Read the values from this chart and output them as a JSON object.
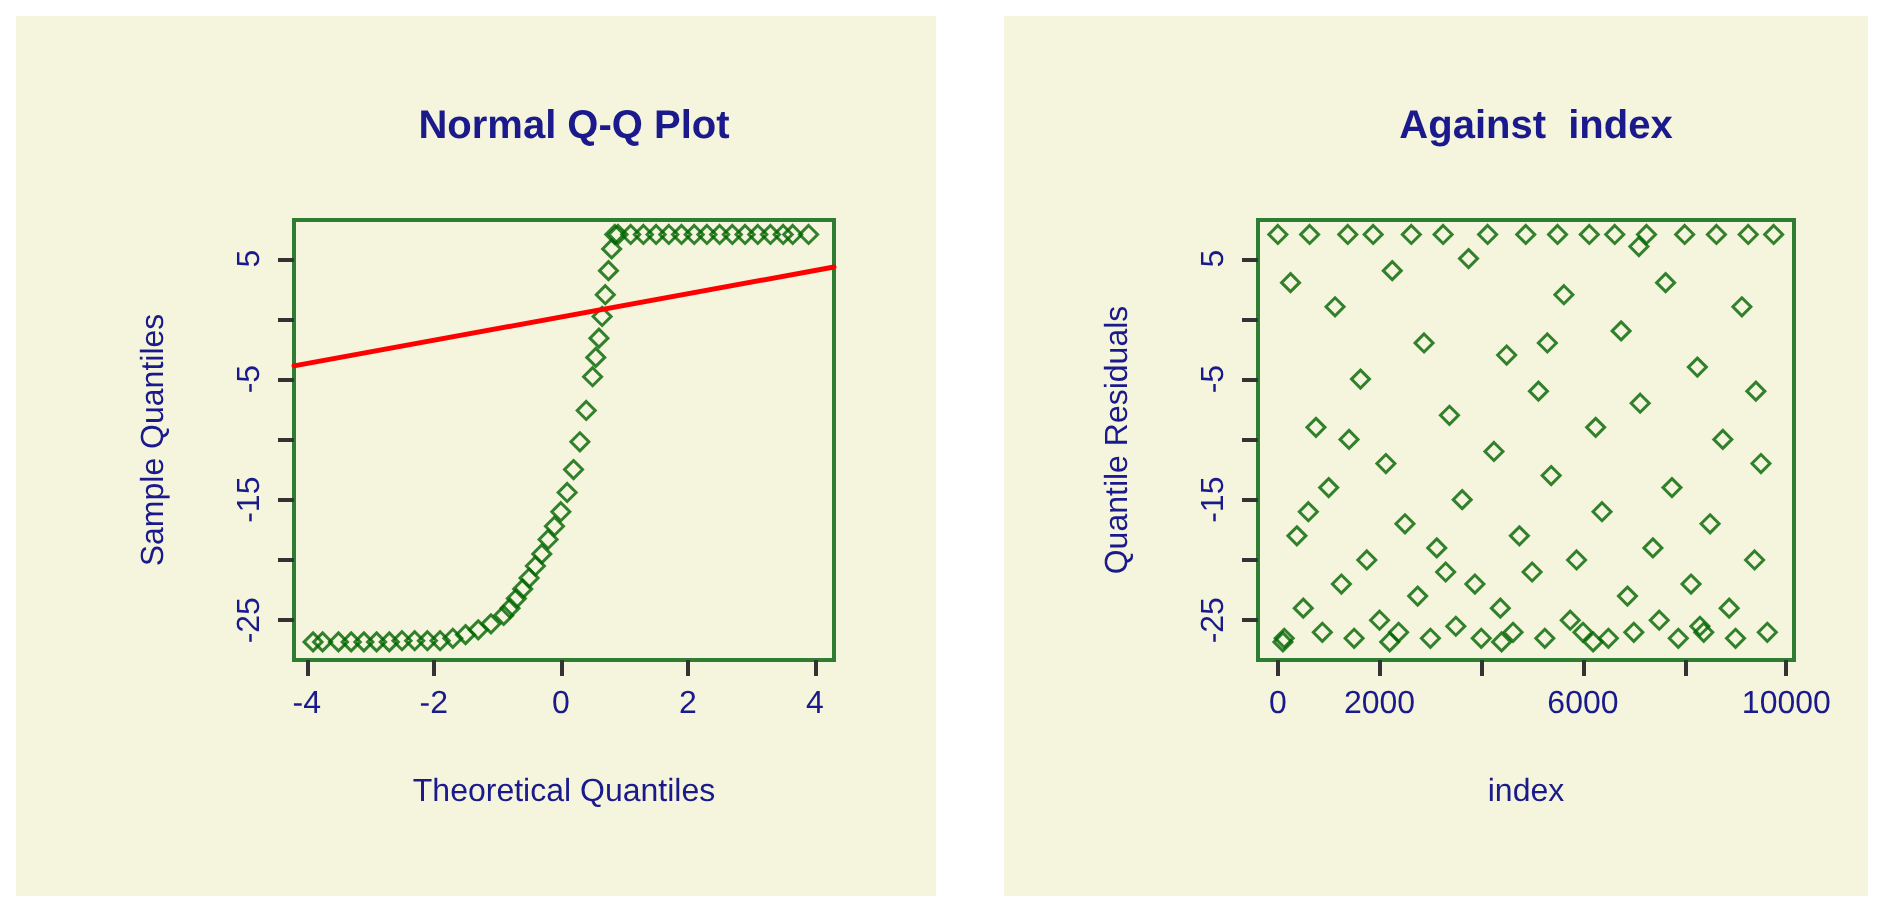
{
  "chart_data": [
    {
      "type": "scatter",
      "title": "Normal Q-Q Plot",
      "xlabel": "Theoretical Quantiles",
      "ylabel": "Sample Quantiles",
      "xlim": [
        -4.2,
        4.3
      ],
      "ylim": [
        -28.3,
        8.2
      ],
      "xticks": [
        -4,
        -2,
        0,
        2,
        4
      ],
      "yticks": [
        {
          "value": -25,
          "label": "-25"
        },
        {
          "value": -20,
          "label": null
        },
        {
          "value": -15,
          "label": "-15"
        },
        {
          "value": -10,
          "label": null
        },
        {
          "value": -5,
          "label": "-5"
        },
        {
          "value": 0,
          "label": null
        },
        {
          "value": 5,
          "label": "5"
        }
      ],
      "grid": false,
      "marker": "diamond",
      "series": [
        {
          "color": "#006400",
          "x": [
            -3.9,
            -3.75,
            -3.5,
            -3.3,
            -3.1,
            -2.9,
            -2.7,
            -2.5,
            -2.3,
            -2.1,
            -1.9,
            -1.7,
            -1.5,
            -1.3,
            -1.1,
            -0.9,
            -0.8,
            -0.7,
            -0.6,
            -0.5,
            -0.4,
            -0.3,
            -0.2,
            -0.1,
            0,
            0.1,
            0.2,
            0.3,
            0.4,
            0.5,
            0.55,
            0.6,
            0.65,
            0.7,
            0.75,
            0.8,
            0.85,
            0.9,
            1.1,
            1.3,
            1.5,
            1.7,
            1.9,
            2.1,
            2.3,
            2.5,
            2.7,
            2.9,
            3.1,
            3.3,
            3.5,
            3.65,
            3.9
          ],
          "values": [
            -26.8,
            -26.8,
            -26.8,
            -26.8,
            -26.8,
            -26.8,
            -26.8,
            -26.7,
            -26.7,
            -26.7,
            -26.7,
            -26.5,
            -26.2,
            -25.8,
            -25.3,
            -24.6,
            -24.0,
            -23.2,
            -22.4,
            -21.5,
            -20.5,
            -19.5,
            -18.3,
            -17.2,
            -16.0,
            -14.4,
            -12.5,
            -10.2,
            -7.6,
            -4.8,
            -3.2,
            -1.6,
            0.2,
            2.0,
            4.0,
            5.8,
            7.0,
            7.0,
            7.0,
            7.0,
            7.0,
            7.0,
            7.0,
            7.0,
            7.0,
            7.0,
            7.0,
            7.0,
            7.0,
            7.0,
            7.0,
            7.0,
            7.0
          ]
        },
        {
          "type": "line",
          "color": "#ff0000",
          "marker": "none",
          "line_style": "solid",
          "x": [
            -4.2,
            4.3
          ],
          "values": [
            -3.9,
            4.3
          ]
        }
      ]
    },
    {
      "type": "scatter",
      "title": "Against  index",
      "xlabel": "index",
      "ylabel": "Quantile Residuals",
      "xlim": [
        -390,
        10150
      ],
      "ylim": [
        -28.3,
        8.2
      ],
      "xticks": [
        0,
        2000,
        {
          "value": 4000,
          "label": null
        },
        6000,
        {
          "value": 8000,
          "label": null
        },
        10000
      ],
      "yticks": [
        {
          "value": -25,
          "label": "-25"
        },
        {
          "value": -20,
          "label": null
        },
        {
          "value": -15,
          "label": "-15"
        },
        {
          "value": -10,
          "label": null
        },
        {
          "value": -5,
          "label": "-5"
        },
        {
          "value": 0,
          "label": null
        },
        {
          "value": 5,
          "label": "5"
        }
      ],
      "grid": false,
      "marker": "diamond",
      "series": [
        {
          "color": "#006400",
          "x": [
            0,
            125,
            250,
            375,
            500,
            625,
            750,
            875,
            1000,
            1125,
            1250,
            1375,
            1500,
            1625,
            1750,
            1875,
            2000,
            2125,
            2250,
            2375,
            2500,
            2625,
            2750,
            2875,
            3000,
            3125,
            3250,
            3375,
            3500,
            3625,
            3750,
            3875,
            4000,
            4125,
            4250,
            4375,
            4500,
            4625,
            4750,
            4875,
            5000,
            5125,
            5250,
            5375,
            5500,
            5625,
            5750,
            5875,
            6000,
            6125,
            6250,
            6375,
            6500,
            6625,
            6750,
            6875,
            7000,
            7125,
            7250,
            7375,
            7500,
            7625,
            7750,
            7875,
            8000,
            8125,
            8250,
            8375,
            8500,
            8625,
            8750,
            8875,
            9000,
            9125,
            9250,
            9375,
            9500,
            9625,
            9750,
            100,
            600,
            1400,
            2200,
            3300,
            4400,
            5300,
            6200,
            7100,
            8300,
            9400
          ],
          "values": [
            7.0,
            -26.5,
            3.0,
            -18.0,
            -24.0,
            7.0,
            -9.0,
            -26.0,
            -14.0,
            1.0,
            -22.0,
            7.0,
            -26.5,
            -5.0,
            -20.0,
            7.0,
            -25.0,
            -12.0,
            4.0,
            -26.0,
            -17.0,
            7.0,
            -23.0,
            -2.0,
            -26.5,
            -19.0,
            7.0,
            -8.0,
            -25.5,
            -15.0,
            5.0,
            -22.0,
            -26.5,
            7.0,
            -11.0,
            -24.0,
            -3.0,
            -26.0,
            -18.0,
            7.0,
            -21.0,
            -6.0,
            -26.5,
            -13.0,
            7.0,
            2.0,
            -25.0,
            -20.0,
            -26.0,
            7.0,
            -9.0,
            -16.0,
            -26.5,
            7.0,
            -1.0,
            -23.0,
            -26.0,
            -7.0,
            7.0,
            -19.0,
            -25.0,
            3.0,
            -14.0,
            -26.5,
            7.0,
            -22.0,
            -4.0,
            -26.0,
            -17.0,
            7.0,
            -10.0,
            -24.0,
            -26.5,
            1.0,
            7.0,
            -20.0,
            -12.0,
            -26.0,
            7.0,
            -26.8,
            -16.0,
            -10.0,
            -26.8,
            -21.0,
            -26.8,
            -2.0,
            -26.8,
            6.0,
            -25.5,
            -6.0
          ]
        }
      ]
    }
  ]
}
